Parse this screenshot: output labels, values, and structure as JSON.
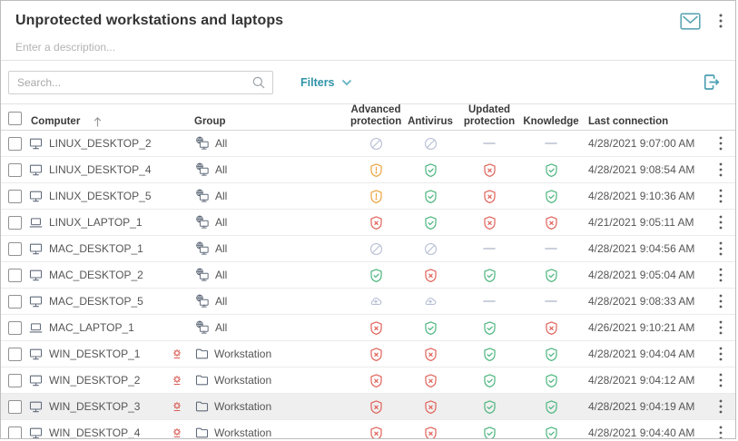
{
  "header": {
    "title": "Unprotected workstations and laptops",
    "description_placeholder": "Enter a description..."
  },
  "toolbar": {
    "search_placeholder": "Search...",
    "filters_label": "Filters"
  },
  "table": {
    "columns": {
      "computer": "Computer",
      "group": "Group",
      "advanced_protection": "Advanced protection",
      "antivirus": "Antivirus",
      "updated_protection": "Updated protection",
      "knowledge": "Knowledge",
      "last_connection": "Last connection"
    },
    "rows": [
      {
        "computer": "LINUX_DESKTOP_2",
        "device": "desktop",
        "alert": false,
        "group": "All",
        "group_icon": "all-devices",
        "advanced": "disabled",
        "antivirus": "disabled",
        "updated": "none",
        "knowledge": "none",
        "last_connection": "4/28/2021 9:07:00 AM",
        "highlighted": false
      },
      {
        "computer": "LINUX_DESKTOP_4",
        "device": "desktop",
        "alert": false,
        "group": "All",
        "group_icon": "all-devices",
        "advanced": "warning",
        "antivirus": "ok",
        "updated": "error",
        "knowledge": "ok",
        "last_connection": "4/28/2021 9:08:54 AM",
        "highlighted": false
      },
      {
        "computer": "LINUX_DESKTOP_5",
        "device": "desktop",
        "alert": false,
        "group": "All",
        "group_icon": "all-devices",
        "advanced": "warning",
        "antivirus": "ok",
        "updated": "error",
        "knowledge": "ok",
        "last_connection": "4/28/2021 9:10:36 AM",
        "highlighted": false
      },
      {
        "computer": "LINUX_LAPTOP_1",
        "device": "laptop",
        "alert": false,
        "group": "All",
        "group_icon": "all-devices",
        "advanced": "error",
        "antivirus": "ok",
        "updated": "error",
        "knowledge": "error",
        "last_connection": "4/21/2021 9:05:11 AM",
        "highlighted": false
      },
      {
        "computer": "MAC_DESKTOP_1",
        "device": "desktop",
        "alert": false,
        "group": "All",
        "group_icon": "all-devices",
        "advanced": "disabled",
        "antivirus": "disabled",
        "updated": "none",
        "knowledge": "none",
        "last_connection": "4/28/2021 9:04:56 AM",
        "highlighted": false
      },
      {
        "computer": "MAC_DESKTOP_2",
        "device": "desktop",
        "alert": false,
        "group": "All",
        "group_icon": "all-devices",
        "advanced": "ok",
        "antivirus": "error",
        "updated": "ok",
        "knowledge": "ok",
        "last_connection": "4/28/2021 9:05:04 AM",
        "highlighted": false
      },
      {
        "computer": "MAC_DESKTOP_5",
        "device": "desktop",
        "alert": false,
        "group": "All",
        "group_icon": "all-devices",
        "advanced": "installing",
        "antivirus": "installing",
        "updated": "none",
        "knowledge": "none",
        "last_connection": "4/28/2021 9:08:33 AM",
        "highlighted": false
      },
      {
        "computer": "MAC_LAPTOP_1",
        "device": "laptop",
        "alert": false,
        "group": "All",
        "group_icon": "all-devices",
        "advanced": "error",
        "antivirus": "ok",
        "updated": "ok",
        "knowledge": "error",
        "last_connection": "4/26/2021 9:10:21 AM",
        "highlighted": false
      },
      {
        "computer": "WIN_DESKTOP_1",
        "device": "desktop",
        "alert": true,
        "group": "Workstation",
        "group_icon": "folder",
        "advanced": "error",
        "antivirus": "error",
        "updated": "ok",
        "knowledge": "ok",
        "last_connection": "4/28/2021 9:04:04 AM",
        "highlighted": false
      },
      {
        "computer": "WIN_DESKTOP_2",
        "device": "desktop",
        "alert": true,
        "group": "Workstation",
        "group_icon": "folder",
        "advanced": "error",
        "antivirus": "error",
        "updated": "ok",
        "knowledge": "ok",
        "last_connection": "4/28/2021 9:04:12 AM",
        "highlighted": false
      },
      {
        "computer": "WIN_DESKTOP_3",
        "device": "desktop",
        "alert": true,
        "group": "Workstation",
        "group_icon": "folder",
        "advanced": "error",
        "antivirus": "error",
        "updated": "ok",
        "knowledge": "ok",
        "last_connection": "4/28/2021 9:04:19 AM",
        "highlighted": true
      },
      {
        "computer": "WIN_DESKTOP_4",
        "device": "desktop",
        "alert": true,
        "group": "Workstation",
        "group_icon": "folder",
        "advanced": "error",
        "antivirus": "error",
        "updated": "ok",
        "knowledge": "ok",
        "last_connection": "4/28/2021 9:04:40 AM",
        "highlighted": false
      }
    ]
  },
  "status_icons": {
    "ok": "green-shield-check",
    "error": "red-shield-x",
    "warning": "orange-shield-exclamation",
    "disabled": "gray-circle-slash",
    "installing": "gray-cloud-up-arrow",
    "none": "gray-dash"
  },
  "icons": {
    "email-icon": "teal envelope outline",
    "header-menu-icon": "vertical three dots",
    "search-icon": "magnifying glass",
    "chevron-down-icon": "teal chevron down",
    "export-icon": "teal door with right arrow",
    "sort-ascending-icon": "up arrow",
    "desktop-icon": "monitor outline",
    "laptop-icon": "laptop outline",
    "all-devices-icon": "globe over monitor",
    "folder-icon": "folder outline",
    "malware-alert-icon": "red gear with underline",
    "row-menu-icon": "vertical three dots"
  },
  "colors": {
    "accent_teal": "#2f93a8",
    "success_green": "#4cb57e",
    "error_red": "#e0635a",
    "warning_orange": "#eda33f",
    "muted_blue_gray": "#b6bfd3",
    "row_highlight": "#efefef"
  }
}
